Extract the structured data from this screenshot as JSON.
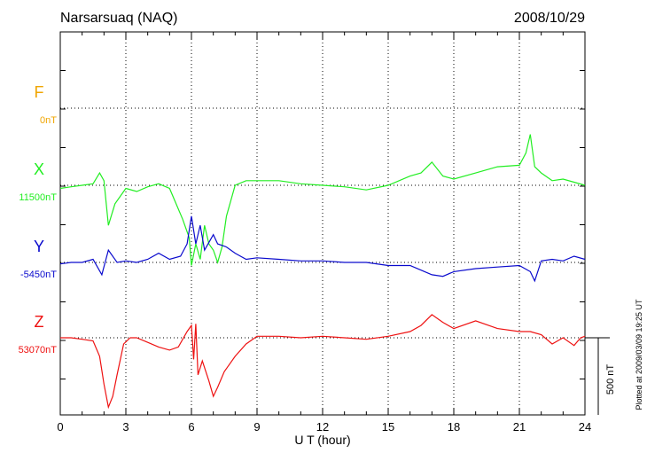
{
  "chart_data": {
    "type": "line",
    "title": "Narsarsuaq (NAQ)",
    "date": "2008/10/29",
    "xlabel": "U T (hour)",
    "xlim": [
      0,
      24
    ],
    "xticks": [
      0,
      3,
      6,
      9,
      12,
      15,
      18,
      21,
      24
    ],
    "scale_bar_label": "500 nT",
    "plotted_note": "Plotted at 2009/03/09 19:25 UT",
    "grid": true,
    "series": [
      {
        "name": "F",
        "baseline": "0nT",
        "color": "#f0a500",
        "x": [],
        "y": []
      },
      {
        "name": "X",
        "baseline": "11500nT",
        "color": "#22ee22",
        "x": [
          0,
          0.5,
          1.0,
          1.5,
          1.8,
          2.0,
          2.2,
          2.5,
          3.0,
          3.5,
          4.0,
          4.5,
          5.0,
          5.3,
          5.6,
          5.9,
          6.0,
          6.2,
          6.4,
          6.6,
          6.8,
          7.0,
          7.2,
          7.4,
          7.6,
          7.8,
          8.0,
          8.5,
          9.0,
          10.0,
          11.0,
          12.0,
          13.0,
          14.0,
          15.0,
          16.0,
          16.5,
          17.0,
          17.5,
          18.0,
          19.0,
          20.0,
          21.0,
          21.3,
          21.5,
          21.7,
          22.0,
          22.5,
          23.0,
          23.5,
          24.0
        ],
        "y": [
          -20,
          -10,
          0,
          10,
          80,
          30,
          -260,
          -120,
          -20,
          -40,
          -10,
          10,
          -20,
          -120,
          -220,
          -340,
          -520,
          -380,
          -480,
          -260,
          -380,
          -420,
          -500,
          -400,
          -200,
          -100,
          0,
          30,
          30,
          30,
          10,
          0,
          -10,
          -30,
          0,
          60,
          80,
          150,
          60,
          40,
          80,
          120,
          130,
          210,
          330,
          120,
          80,
          30,
          40,
          20,
          0
        ]
      },
      {
        "name": "Y",
        "baseline": "-5450nT",
        "color": "#0a0acd",
        "x": [
          0,
          0.5,
          1.0,
          1.5,
          1.9,
          2.2,
          2.6,
          3.0,
          3.5,
          4.0,
          4.5,
          5.0,
          5.5,
          5.8,
          6.0,
          6.2,
          6.4,
          6.6,
          7.0,
          7.2,
          7.6,
          8.0,
          8.5,
          9.0,
          10.0,
          11.0,
          12.0,
          13.0,
          14.0,
          15.0,
          16.0,
          16.5,
          17.0,
          17.5,
          18.0,
          19.0,
          20.0,
          21.0,
          21.5,
          21.7,
          22.0,
          22.5,
          23.0,
          23.5,
          24.0
        ],
        "y": [
          -10,
          0,
          0,
          20,
          -80,
          80,
          0,
          10,
          0,
          20,
          60,
          20,
          40,
          120,
          300,
          120,
          240,
          80,
          180,
          120,
          100,
          60,
          20,
          30,
          20,
          10,
          10,
          0,
          0,
          -20,
          -20,
          -50,
          -80,
          -90,
          -60,
          -40,
          -30,
          -20,
          -60,
          -120,
          10,
          20,
          10,
          40,
          20
        ]
      },
      {
        "name": "Z",
        "baseline": "53070nT",
        "color": "#ee1111",
        "x": [
          0,
          0.5,
          1.0,
          1.5,
          1.8,
          2.0,
          2.2,
          2.4,
          2.6,
          2.9,
          3.2,
          3.5,
          4.0,
          4.5,
          5.0,
          5.4,
          5.8,
          6.0,
          6.1,
          6.2,
          6.3,
          6.5,
          6.8,
          7.0,
          7.2,
          7.5,
          8.0,
          8.5,
          9.0,
          10.0,
          11.0,
          12.0,
          13.0,
          14.0,
          15.0,
          16.0,
          16.5,
          17.0,
          17.5,
          18.0,
          19.0,
          20.0,
          21.0,
          21.5,
          22.0,
          22.5,
          23.0,
          23.5,
          23.8,
          24.0
        ],
        "y": [
          0,
          0,
          -10,
          -20,
          -120,
          -300,
          -450,
          -380,
          -240,
          -40,
          0,
          0,
          -30,
          -60,
          -80,
          -60,
          40,
          80,
          -140,
          90,
          -240,
          -150,
          -280,
          -380,
          -320,
          -220,
          -120,
          -40,
          10,
          10,
          0,
          10,
          0,
          -10,
          10,
          40,
          80,
          150,
          100,
          60,
          110,
          60,
          40,
          40,
          20,
          -40,
          0,
          -50,
          0,
          10
        ]
      }
    ]
  }
}
